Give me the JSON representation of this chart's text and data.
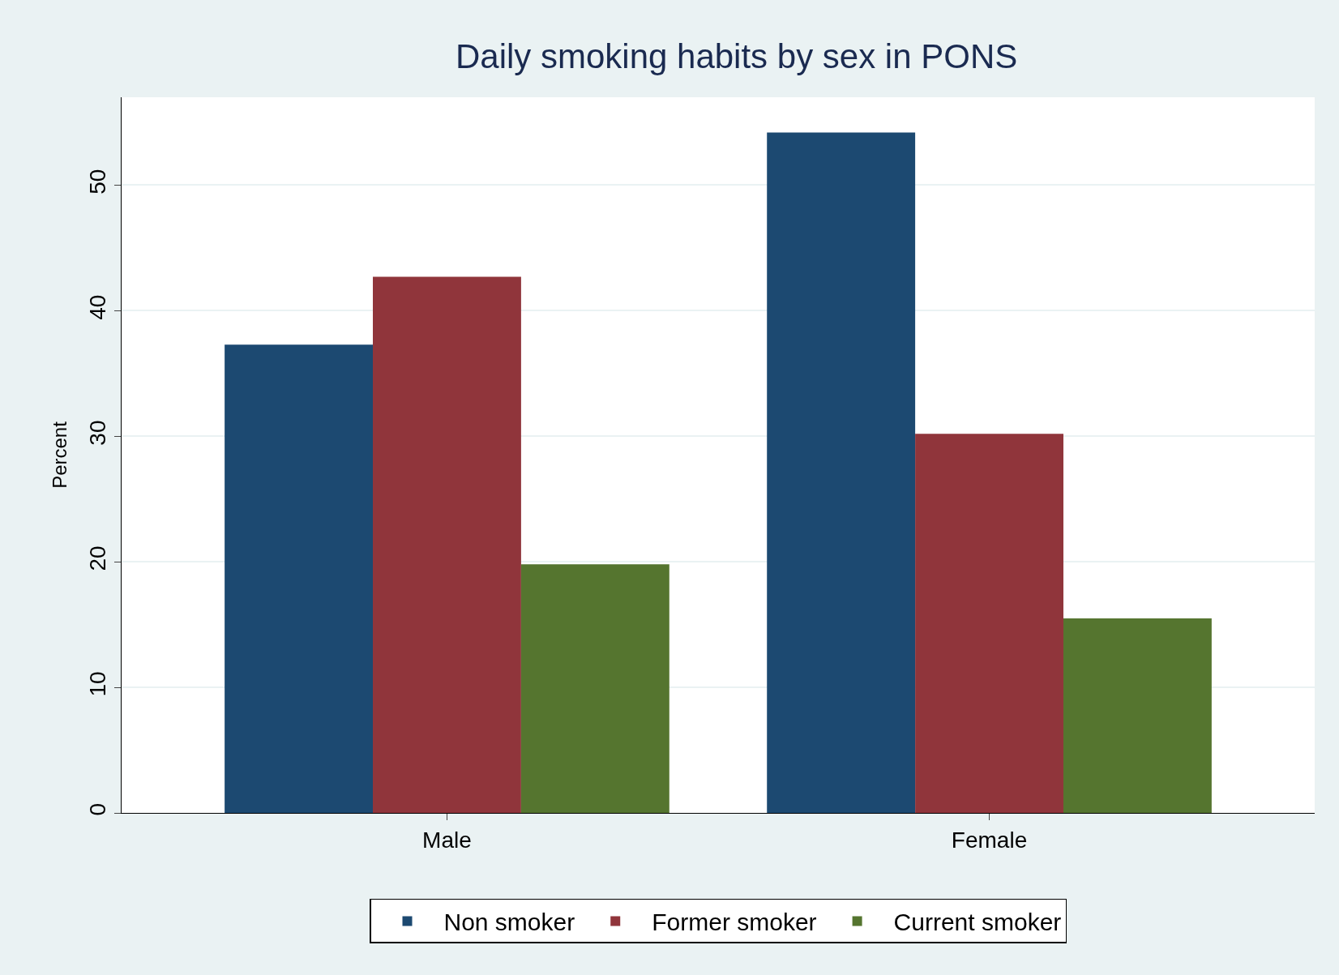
{
  "chart_data": {
    "type": "bar",
    "title": "Daily smoking habits by sex in PONS",
    "ylabel": "Percent",
    "categories": [
      "Male",
      "Female"
    ],
    "series": [
      {
        "name": "Non smoker",
        "color": "#1c4971",
        "values": [
          37.3,
          54.2
        ]
      },
      {
        "name": "Former smoker",
        "color": "#90353b",
        "values": [
          42.7,
          30.2
        ]
      },
      {
        "name": "Current smoker",
        "color": "#55752f",
        "values": [
          19.8,
          15.5
        ]
      }
    ],
    "ylim": [
      0,
      57
    ],
    "yticks": [
      0,
      10,
      20,
      30,
      40,
      50
    ],
    "grid": "y",
    "legend": "bottom"
  }
}
